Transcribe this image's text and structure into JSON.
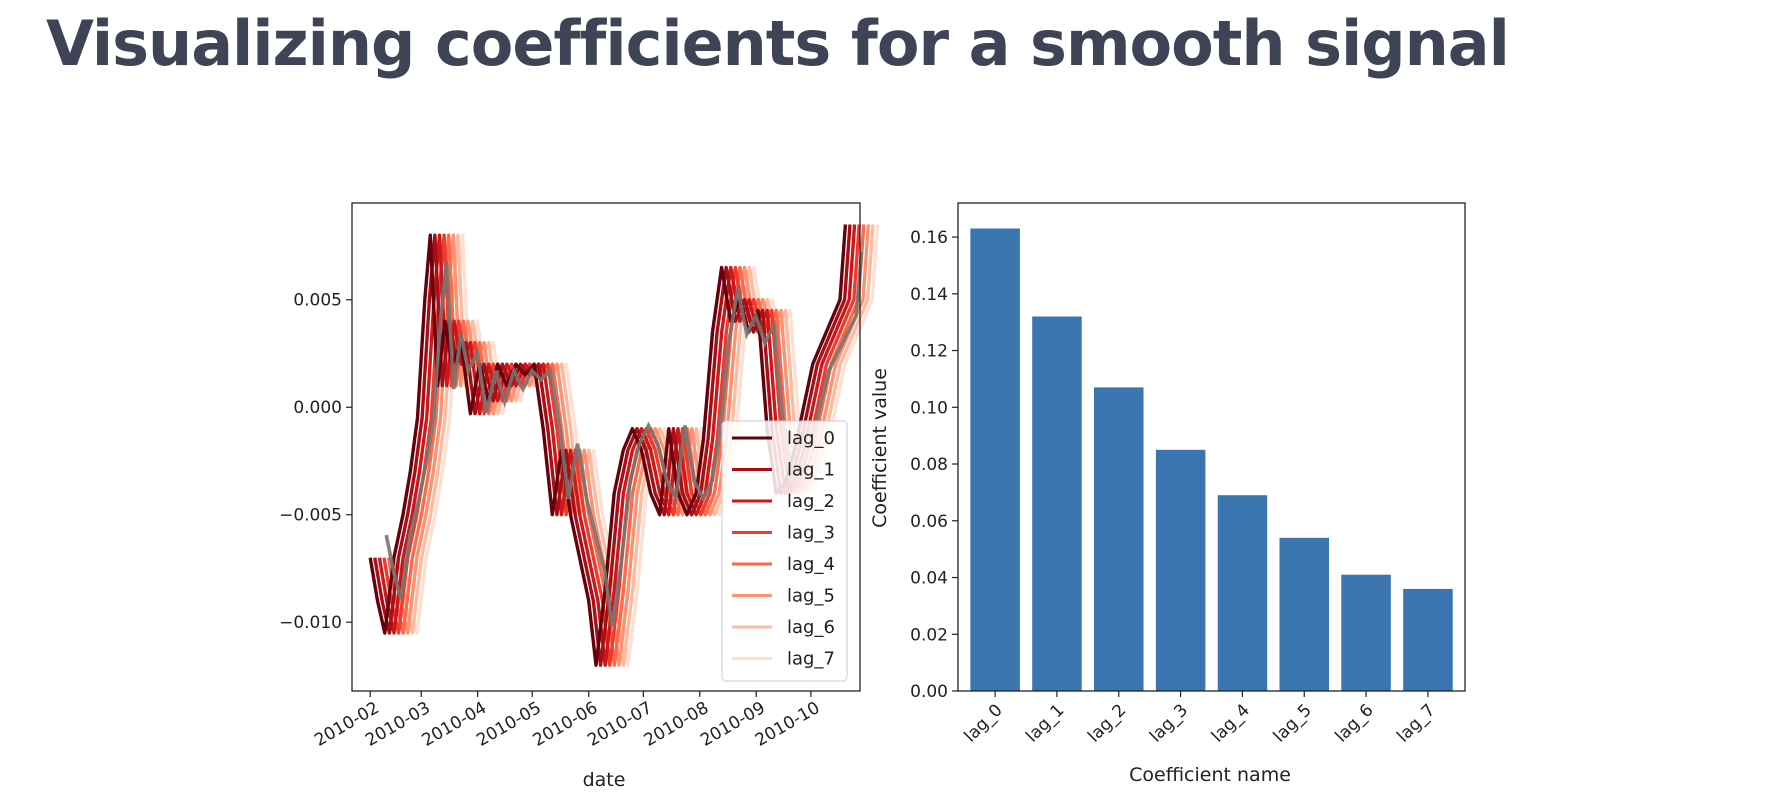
{
  "slide": {
    "title": "Visualizing coefficients for a smooth signal"
  },
  "chart_data": [
    {
      "type": "line",
      "xlabel": "date",
      "ylabel": "",
      "ylim": [
        -0.0132,
        0.0095
      ],
      "xlim": [
        "2010-01-22",
        "2010-10-28"
      ],
      "x_ticks": [
        "2010-02",
        "2010-03",
        "2010-04",
        "2010-05",
        "2010-06",
        "2010-07",
        "2010-08",
        "2010-09",
        "2010-10"
      ],
      "y_ticks": [
        0.005,
        0.0,
        -0.005,
        -0.01
      ],
      "y_tick_labels": [
        "0.005",
        "0.000",
        "−0.005",
        "−0.010"
      ],
      "legend": "lower-right",
      "series_colors": [
        "#67000d",
        "#a50f15",
        "#cb181d",
        "#ef3b2c",
        "#fb6a4a",
        "#fc9272",
        "#fcbba1",
        "#fee0d2"
      ],
      "series": [
        {
          "name": "lag_0"
        },
        {
          "name": "lag_1"
        },
        {
          "name": "lag_2"
        },
        {
          "name": "lag_3"
        },
        {
          "name": "lag_4"
        },
        {
          "name": "lag_5"
        },
        {
          "name": "lag_6"
        },
        {
          "name": "lag_7"
        }
      ],
      "base_series": {
        "x": [
          "2010-02-01",
          "2010-02-05",
          "2010-02-09",
          "2010-02-14",
          "2010-02-19",
          "2010-02-23",
          "2010-02-27",
          "2010-03-03",
          "2010-03-06",
          "2010-03-10",
          "2010-03-14",
          "2010-03-18",
          "2010-03-23",
          "2010-03-28",
          "2010-04-02",
          "2010-04-07",
          "2010-04-12",
          "2010-04-17",
          "2010-04-22",
          "2010-04-27",
          "2010-05-02",
          "2010-05-07",
          "2010-05-12",
          "2010-05-17",
          "2010-05-22",
          "2010-05-27",
          "2010-06-01",
          "2010-06-05",
          "2010-06-10",
          "2010-06-15",
          "2010-06-20",
          "2010-06-25",
          "2010-06-30",
          "2010-07-05",
          "2010-07-10",
          "2010-07-15",
          "2010-07-20",
          "2010-07-25",
          "2010-07-30",
          "2010-08-03",
          "2010-08-08",
          "2010-08-13",
          "2010-08-18",
          "2010-08-23",
          "2010-08-28",
          "2010-09-02",
          "2010-09-07",
          "2010-09-12",
          "2010-09-17",
          "2010-09-22",
          "2010-09-27",
          "2010-10-02",
          "2010-10-07",
          "2010-10-12",
          "2010-10-17",
          "2010-10-20"
        ],
        "y": [
          -0.007,
          -0.009,
          -0.0105,
          -0.007,
          -0.005,
          -0.003,
          -0.0005,
          0.005,
          0.008,
          0.001,
          0.004,
          0.002,
          0.003,
          -0.0003,
          0.002,
          0.0003,
          0.002,
          0.001,
          0.002,
          0.0015,
          0.002,
          -0.001,
          -0.005,
          -0.002,
          -0.005,
          -0.007,
          -0.009,
          -0.012,
          -0.0085,
          -0.004,
          -0.002,
          -0.001,
          -0.002,
          -0.004,
          -0.005,
          -0.001,
          -0.004,
          -0.005,
          -0.004,
          -0.0015,
          0.0035,
          0.0065,
          0.004,
          0.005,
          0.0035,
          0.0045,
          -0.001,
          -0.004,
          -0.0035,
          -0.002,
          0.0,
          0.002,
          0.003,
          0.004,
          0.005,
          0.0085
        ]
      }
    },
    {
      "type": "bar",
      "xlabel": "Coefficient name",
      "ylabel": "Coefficient value",
      "categories": [
        "lag_0",
        "lag_1",
        "lag_2",
        "lag_3",
        "lag_4",
        "lag_5",
        "lag_6",
        "lag_7"
      ],
      "values": [
        0.163,
        0.132,
        0.107,
        0.085,
        0.069,
        0.054,
        0.041,
        0.036
      ],
      "ylim": [
        0,
        0.172
      ],
      "y_ticks": [
        0,
        0.02,
        0.04,
        0.06,
        0.08,
        0.1,
        0.12,
        0.14,
        0.16
      ],
      "y_tick_labels": [
        "0.00",
        "0.02",
        "0.04",
        "0.06",
        "0.08",
        "0.10",
        "0.12",
        "0.14",
        "0.16"
      ],
      "bar_color": "#3a75af"
    }
  ]
}
